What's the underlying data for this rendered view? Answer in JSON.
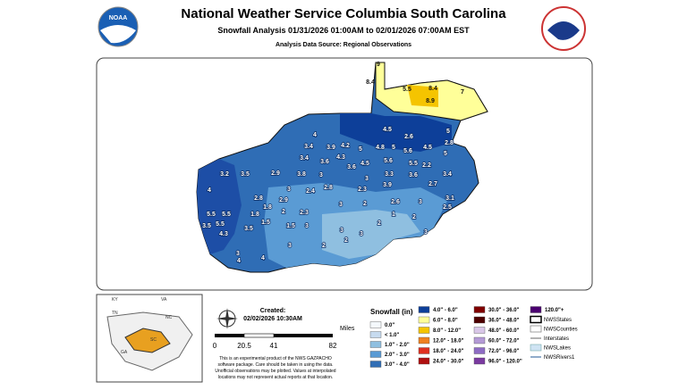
{
  "header": {
    "title": "National Weather Service Columbia South Carolina",
    "subtitle": "Snowfall Analysis 01/31/2026 01:00AM to 02/01/2026 07:00AM EST",
    "source": "Analysis Data Source: Regional Observations",
    "logo": "NOAA"
  },
  "map": {
    "labels": [
      "8.4",
      "9",
      "5.5",
      "8.4",
      "7",
      "8.9",
      "4",
      "3.4",
      "3.9",
      "4.2",
      "5",
      "4.5",
      "2.6",
      "4.8",
      "5",
      "5.6",
      "4.5",
      "2.8",
      "5",
      "5",
      "4.5",
      "5.6",
      "5.5",
      "2.2",
      "3.4",
      "3.6",
      "3.3",
      "3.6",
      "3.6",
      "4.3",
      "3.4",
      "3.8",
      "3",
      "2.9",
      "3.2",
      "3.5",
      "4",
      "2.8",
      "3",
      "2.4",
      "2.8",
      "2.3",
      "3",
      "3.9",
      "2.7",
      "2.9",
      "1.8",
      "2",
      "2.3",
      "1.8",
      "1.5",
      "1.5",
      "3",
      "2",
      "2.6",
      "3",
      "3.1",
      "2.5",
      "1",
      "2",
      "3",
      "5.5",
      "5.5",
      "3.5",
      "5.5",
      "4.3",
      "3.5",
      "3",
      "3",
      "2",
      "2",
      "3",
      "3",
      "2",
      "4",
      "4",
      "3"
    ]
  },
  "inset": {
    "labels": [
      "KY",
      "VA",
      "TN",
      "NC",
      "SC",
      "GA"
    ]
  },
  "info": {
    "created_label": "Created:",
    "created": "02/02/2026 10:30AM",
    "scale_unit": "Miles",
    "scale_ticks": [
      "0",
      "20.5",
      "41",
      "82"
    ],
    "disclaimer": [
      "This is an experimental product of the NWS GAZPACHO",
      "software package. Care should be taken in using the data.",
      "Unofficial observations may be plotted. Values at interpolated",
      "locations may not represent actual reports at that location."
    ]
  },
  "legend": {
    "title": "Snowfall (in)",
    "bins": [
      {
        "label": "0.0\"",
        "color": "#f4f8fc"
      },
      {
        "label": "< 1.0\"",
        "color": "#c7dbef"
      },
      {
        "label": "1.0\" - 2.0\"",
        "color": "#8fbfe0"
      },
      {
        "label": "2.0\" - 3.0\"",
        "color": "#5a9bd4"
      },
      {
        "label": "3.0\" - 4.0\"",
        "color": "#2f6db5"
      },
      {
        "label": "4.0\" - 6.0\"",
        "color": "#0d3f99"
      },
      {
        "label": "6.0\" - 8.0\"",
        "color": "#ffff99"
      },
      {
        "label": "8.0\" - 12.0\"",
        "color": "#f5c400"
      },
      {
        "label": "12.0\" - 18.0\"",
        "color": "#f08020"
      },
      {
        "label": "18.0\" - 24.0\"",
        "color": "#e03020"
      },
      {
        "label": "24.0\" - 30.0\"",
        "color": "#b01010"
      },
      {
        "label": "30.0\" - 36.0\"",
        "color": "#800000"
      },
      {
        "label": "36.0\" - 48.0\"",
        "color": "#4d0000"
      },
      {
        "label": "48.0\" - 60.0\"",
        "color": "#d9c7e8"
      },
      {
        "label": "60.0\" - 72.0\"",
        "color": "#b49ad6"
      },
      {
        "label": "72.0\" - 96.0\"",
        "color": "#8e6cc4"
      },
      {
        "label": "96.0\" - 120.0\"",
        "color": "#7a3aa0"
      },
      {
        "label": "120.0\"+",
        "color": "#4a0070"
      }
    ],
    "layers": [
      "NWSStates",
      "NWSCounties",
      "Interstates",
      "NWSLakes",
      "NWSRivers1"
    ]
  }
}
